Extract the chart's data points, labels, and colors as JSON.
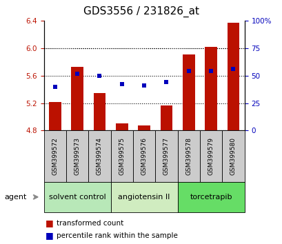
{
  "title": "GDS3556 / 231826_at",
  "samples": [
    "GSM399572",
    "GSM399573",
    "GSM399574",
    "GSM399575",
    "GSM399576",
    "GSM399577",
    "GSM399578",
    "GSM399579",
    "GSM399580"
  ],
  "bar_values": [
    5.22,
    5.73,
    5.35,
    4.9,
    4.87,
    5.17,
    5.91,
    6.02,
    6.37
  ],
  "bar_bottom": 4.8,
  "percentile_values": [
    40,
    52,
    50,
    42,
    41,
    44,
    54,
    54,
    56
  ],
  "ylim_left": [
    4.8,
    6.4
  ],
  "ylim_right": [
    0,
    100
  ],
  "yticks_left": [
    4.8,
    5.2,
    5.6,
    6.0,
    6.4
  ],
  "yticks_right": [
    0,
    25,
    50,
    75,
    100
  ],
  "groups": [
    {
      "label": "solvent control",
      "indices": [
        0,
        1,
        2
      ],
      "color": "#b8e8b8"
    },
    {
      "label": "angiotensin II",
      "indices": [
        3,
        4,
        5
      ],
      "color": "#d0ecc0"
    },
    {
      "label": "torcetrapib",
      "indices": [
        6,
        7,
        8
      ],
      "color": "#66dd66"
    }
  ],
  "bar_color": "#bb1100",
  "dot_color": "#0000bb",
  "bar_width": 0.55,
  "legend_items": [
    {
      "label": "transformed count",
      "color": "#bb1100"
    },
    {
      "label": "percentile rank within the sample",
      "color": "#0000bb"
    }
  ],
  "agent_label": "agent",
  "sample_box_color": "#cccccc",
  "title_fontsize": 11,
  "tick_fontsize": 7.5,
  "sample_fontsize": 6.5,
  "group_fontsize": 8,
  "legend_fontsize": 7.5
}
